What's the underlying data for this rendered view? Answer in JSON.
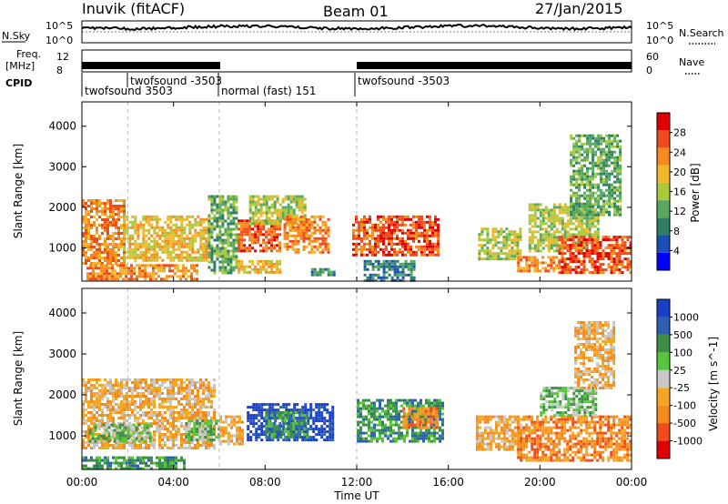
{
  "header": {
    "left_title": "Inuvik (fitACF)",
    "center_title": "Beam 01",
    "right_title": "27/Jan/2015"
  },
  "top_panels": {
    "nsky": {
      "label": "N.Sky",
      "ticks_left": [
        "10^5",
        "10^0"
      ],
      "ticks_right": [
        "10^5",
        "10^0"
      ],
      "right_label": "N.Search",
      "right_label_style": "dotted"
    },
    "freq": {
      "label_line1": "Freq.",
      "label_line2": "[MHz]",
      "ticks_left": [
        "12",
        "8"
      ],
      "ticks_right": [
        "60",
        "0"
      ],
      "right_label": "Nave",
      "right_label_style": "dotted"
    },
    "cpid": {
      "label": "CPID",
      "segments": [
        {
          "label": "twofsound 3503",
          "start_h": 0.0,
          "end_h": 2.0
        },
        {
          "label": "twofsound -3503",
          "start_h": 2.0,
          "end_h": 6.0
        },
        {
          "label": "normal (fast) 151",
          "start_h": 6.0,
          "end_h": 12.0
        },
        {
          "label": "twofsound -3503",
          "start_h": 12.0,
          "end_h": 24.0
        }
      ]
    }
  },
  "chart_data": [
    {
      "type": "heatmap",
      "name": "Power",
      "title": "",
      "xlabel": "Time UT",
      "ylabel": "Slant Range [km]",
      "xlim": [
        0,
        24
      ],
      "ylim": [
        180,
        4600
      ],
      "x_ticks": [
        "00:00",
        "04:00",
        "08:00",
        "12:00",
        "16:00",
        "20:00",
        "00:00"
      ],
      "y_ticks": [
        1000,
        2000,
        3000,
        4000
      ],
      "colorbar": {
        "label": "Power [dB]",
        "range": [
          0,
          32
        ],
        "ticks": [
          "28",
          "24",
          "20",
          "16",
          "12",
          "8",
          "4"
        ],
        "colors": [
          "#0000ff",
          "#1a4fb8",
          "#2e7f63",
          "#57a95f",
          "#aac93c",
          "#f0b82a",
          "#f58a1e",
          "#f24b1b",
          "#e00000"
        ]
      },
      "regions": [
        {
          "t0": 0.0,
          "t1": 1.8,
          "r0": 600,
          "r1": 2200,
          "level": 24
        },
        {
          "t0": 1.8,
          "t1": 5.6,
          "r0": 700,
          "r1": 1800,
          "level": 20
        },
        {
          "t0": 0.2,
          "t1": 5.0,
          "r0": 250,
          "r1": 600,
          "level": 24
        },
        {
          "t0": 5.5,
          "t1": 6.8,
          "r0": 350,
          "r1": 2300,
          "level": 10
        },
        {
          "t0": 6.8,
          "t1": 8.6,
          "r0": 400,
          "r1": 700,
          "level": 20
        },
        {
          "t0": 6.8,
          "t1": 8.6,
          "r0": 900,
          "r1": 1700,
          "level": 26
        },
        {
          "t0": 7.3,
          "t1": 9.8,
          "r0": 1600,
          "r1": 2300,
          "level": 14
        },
        {
          "t0": 8.8,
          "t1": 10.8,
          "r0": 900,
          "r1": 1800,
          "level": 24
        },
        {
          "t0": 10.0,
          "t1": 11.0,
          "r0": 300,
          "r1": 500,
          "level": 8
        },
        {
          "t0": 11.8,
          "t1": 15.6,
          "r0": 800,
          "r1": 1800,
          "level": 26
        },
        {
          "t0": 12.3,
          "t1": 14.5,
          "r0": 200,
          "r1": 700,
          "level": 8
        },
        {
          "t0": 17.3,
          "t1": 19.2,
          "r0": 700,
          "r1": 1500,
          "level": 14
        },
        {
          "t0": 19.0,
          "t1": 20.8,
          "r0": 400,
          "r1": 800,
          "level": 24
        },
        {
          "t0": 19.5,
          "t1": 22.5,
          "r0": 900,
          "r1": 2100,
          "level": 14
        },
        {
          "t0": 20.8,
          "t1": 24.0,
          "r0": 400,
          "r1": 1300,
          "level": 28
        },
        {
          "t0": 21.3,
          "t1": 23.5,
          "r0": 1800,
          "r1": 3800,
          "level": 10
        }
      ]
    },
    {
      "type": "heatmap",
      "name": "Velocity",
      "title": "",
      "xlabel": "Time UT",
      "ylabel": "Slant Range [km]",
      "xlim": [
        0,
        24
      ],
      "ylim": [
        180,
        4600
      ],
      "x_ticks": [
        "00:00",
        "04:00",
        "08:00",
        "12:00",
        "16:00",
        "20:00",
        "00:00"
      ],
      "y_ticks": [
        1000,
        2000,
        3000,
        4000
      ],
      "colorbar": {
        "label": "Velocity [m s^-1]",
        "ticks": [
          "1000",
          "500",
          "100",
          "25",
          "-25",
          "-100",
          "-500",
          "-1000"
        ],
        "colors": [
          "#e00000",
          "#f24b1b",
          "#f58a1e",
          "#f5a623",
          "#c8c8c8",
          "#57c43a",
          "#3b8f47",
          "#2d5fb5",
          "#1a3fc8"
        ]
      },
      "regions": [
        {
          "t0": 0.0,
          "t1": 5.8,
          "r0": 700,
          "r1": 2400,
          "velocity": -100
        },
        {
          "t0": 0.3,
          "t1": 3.0,
          "r0": 900,
          "r1": 1300,
          "velocity": 0
        },
        {
          "t0": 4.5,
          "t1": 6.0,
          "r0": 900,
          "r1": 1400,
          "velocity": 0
        },
        {
          "t0": 0.0,
          "t1": 4.5,
          "r0": 200,
          "r1": 500,
          "velocity": 100
        },
        {
          "t0": 6.0,
          "t1": 7.0,
          "r0": 800,
          "r1": 1500,
          "velocity": -100
        },
        {
          "t0": 7.2,
          "t1": 11.0,
          "r0": 900,
          "r1": 1800,
          "velocity": 1000
        },
        {
          "t0": 8.0,
          "t1": 9.8,
          "r0": 1000,
          "r1": 1600,
          "velocity": 100
        },
        {
          "t0": 12.0,
          "t1": 15.8,
          "r0": 900,
          "r1": 1900,
          "velocity": 100
        },
        {
          "t0": 14.0,
          "t1": 15.5,
          "r0": 1200,
          "r1": 1700,
          "velocity": -500
        },
        {
          "t0": 17.2,
          "t1": 19.2,
          "r0": 700,
          "r1": 1500,
          "velocity": -100
        },
        {
          "t0": 19.0,
          "t1": 24.0,
          "r0": 400,
          "r1": 1500,
          "velocity": -500
        },
        {
          "t0": 20.0,
          "t1": 22.5,
          "r0": 1500,
          "r1": 2200,
          "velocity": 0
        },
        {
          "t0": 21.5,
          "t1": 23.2,
          "r0": 2200,
          "r1": 3800,
          "velocity": -100
        }
      ]
    }
  ]
}
